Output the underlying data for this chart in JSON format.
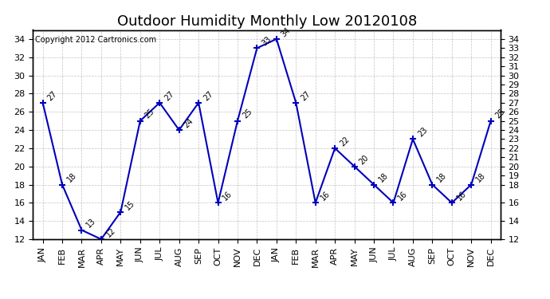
{
  "title": "Outdoor Humidity Monthly Low 20120108",
  "copyright_text": "Copyright 2012 Cartronics.com",
  "months": [
    "JAN",
    "FEB",
    "MAR",
    "APR",
    "MAY",
    "JUN",
    "JUL",
    "AUG",
    "SEP",
    "OCT",
    "NOV",
    "DEC",
    "JAN",
    "FEB",
    "MAR",
    "APR",
    "MAY",
    "JUN",
    "JUL",
    "AUG",
    "SEP",
    "OCT",
    "NOV",
    "DEC"
  ],
  "values": [
    27,
    18,
    13,
    12,
    15,
    25,
    27,
    24,
    27,
    16,
    25,
    33,
    34,
    27,
    16,
    22,
    20,
    18,
    16,
    23,
    18,
    16,
    18,
    25
  ],
  "line_color": "#0000bb",
  "marker_color": "#0000bb",
  "ylim_min": 12,
  "ylim_max": 35,
  "left_yticks": [
    12,
    14,
    16,
    18,
    20,
    22,
    24,
    26,
    28,
    30,
    32,
    34
  ],
  "right_yticks": [
    12,
    14,
    16,
    18,
    19,
    20,
    21,
    22,
    23,
    24,
    25,
    26,
    27,
    28,
    29,
    30,
    31,
    32,
    33,
    34
  ],
  "bg_color": "#ffffff",
  "grid_color": "#aaaaaa",
  "title_fontsize": 13,
  "tick_fontsize": 8,
  "annot_fontsize": 7
}
